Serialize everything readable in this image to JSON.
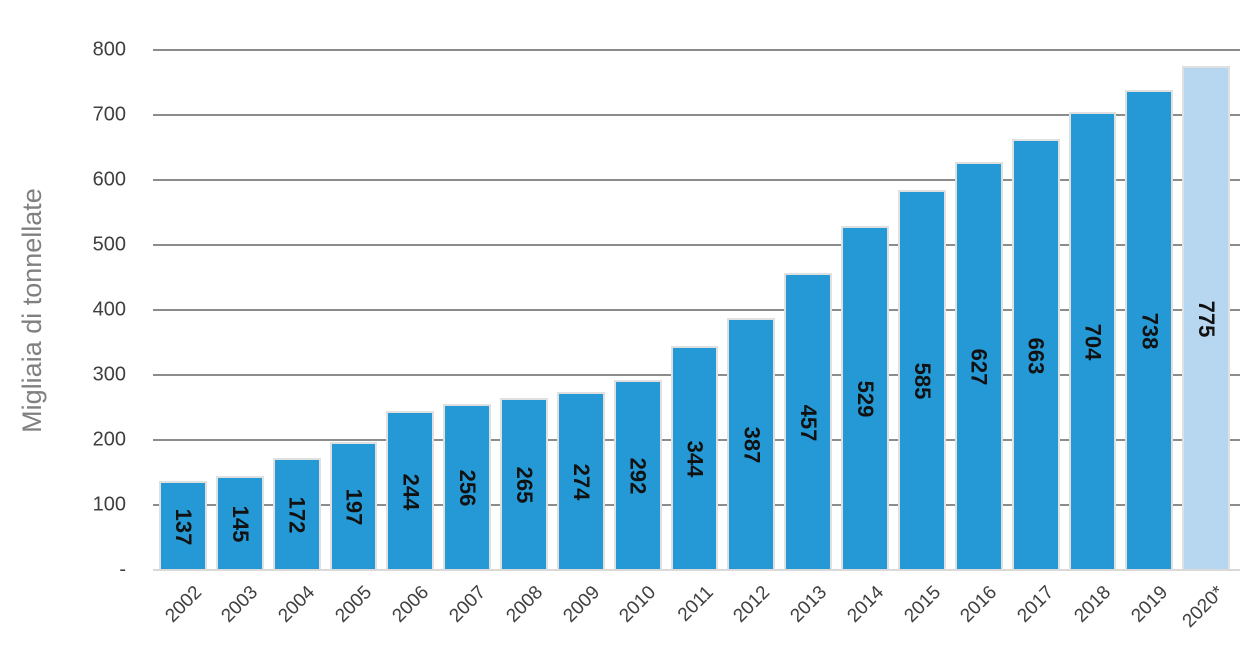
{
  "chart_data": {
    "type": "bar",
    "title": "",
    "ylabel": "Migliaia di tonnellate",
    "xlabel": "",
    "categories": [
      "2002",
      "2003",
      "2004",
      "2005",
      "2006",
      "2007",
      "2008",
      "2009",
      "2010",
      "2011",
      "2012",
      "2013",
      "2014",
      "2015",
      "2016",
      "2017",
      "2018",
      "2019",
      "2020*"
    ],
    "values": [
      137,
      145,
      172,
      197,
      244,
      256,
      265,
      274,
      292,
      344,
      387,
      457,
      529,
      585,
      627,
      663,
      704,
      738,
      775
    ],
    "ylim": [
      0,
      800
    ],
    "ytick_step": 100,
    "ytick_labels": [
      "-",
      "100",
      "200",
      "300",
      "400",
      "500",
      "600",
      "700",
      "800"
    ],
    "zero_tick_label": "-",
    "grid": true,
    "legend": false,
    "bar_label_placement": "inside-center",
    "bar_label_rotation": "90deg-clockwise-top-to-bottom",
    "xtick_rotation": -45,
    "forecast_bar_index": 18,
    "colors": {
      "bar": "#2499d6",
      "bar_forecast": "#b6d7ef",
      "bar_border": "#e0e0e0",
      "gridline": "#8c8c8c",
      "axis_line": "#d9d9d9",
      "tick_text": "#3f3f3f",
      "ylabel_text": "#808080",
      "bar_label_text": "#111111",
      "background": "#ffffff"
    }
  }
}
